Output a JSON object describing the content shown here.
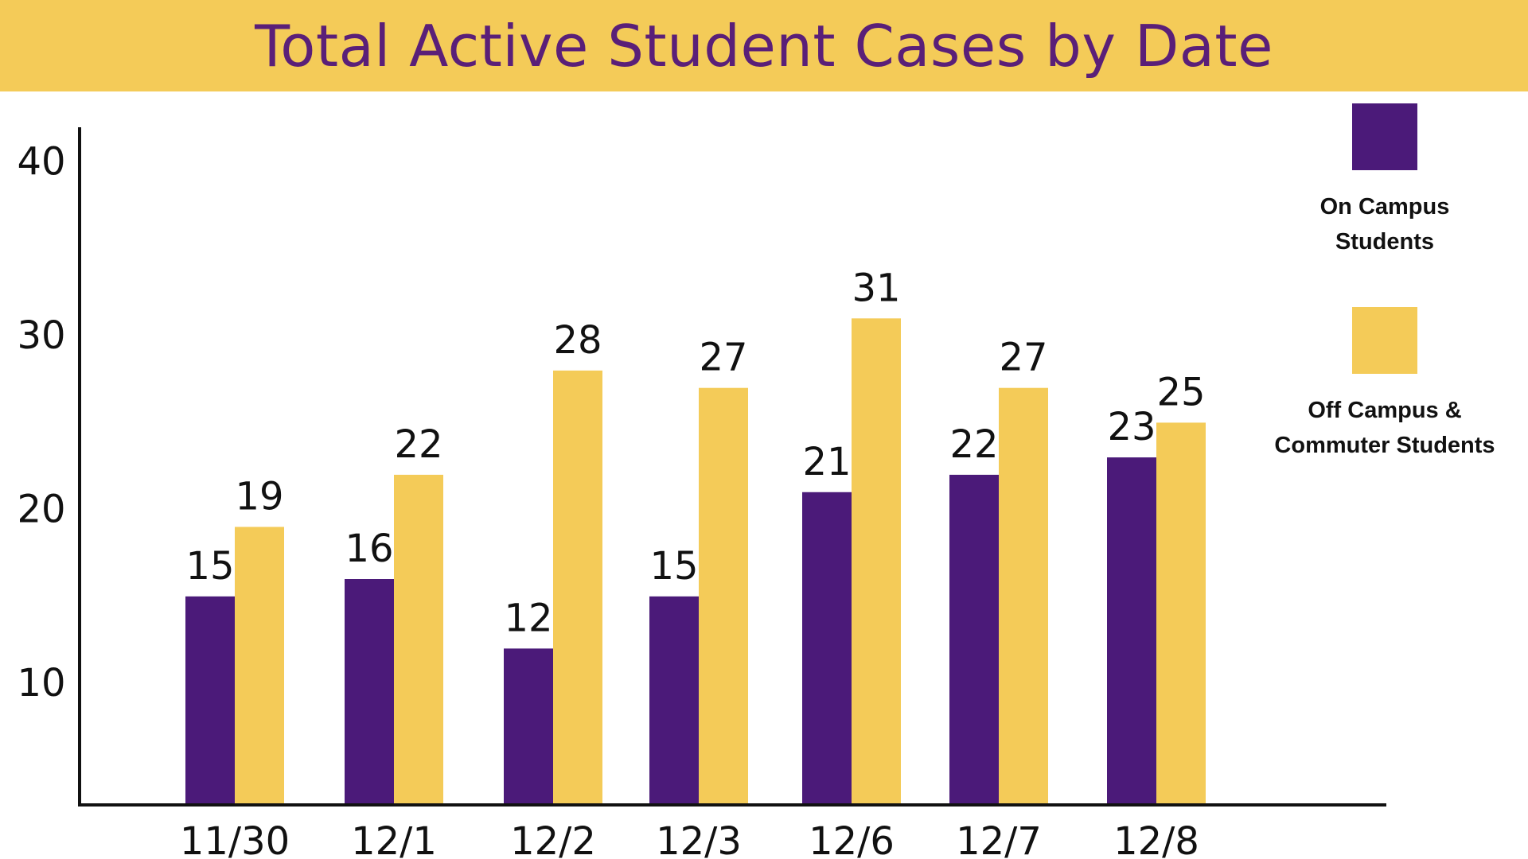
{
  "chart_data": {
    "type": "bar",
    "title": "Total Active Student Cases by Date",
    "categories": [
      "11/30",
      "12/1",
      "12/2",
      "12/3",
      "12/6",
      "12/7",
      "12/8"
    ],
    "series": [
      {
        "name": "On Campus Students",
        "values": [
          15,
          16,
          12,
          15,
          21,
          22,
          23
        ],
        "color": "#4b1a79"
      },
      {
        "name": "Off Campus & Commuter Students",
        "values": [
          19,
          22,
          28,
          27,
          31,
          27,
          25
        ],
        "color": "#f4cb58"
      }
    ],
    "y_ticks": [
      "10",
      "20",
      "30",
      "40"
    ],
    "ylim": [
      3,
      42
    ],
    "legend_position": "top-right",
    "grid": false
  },
  "colors": {
    "title_band": "#f4cb58",
    "title_text": "#5a1f78"
  }
}
